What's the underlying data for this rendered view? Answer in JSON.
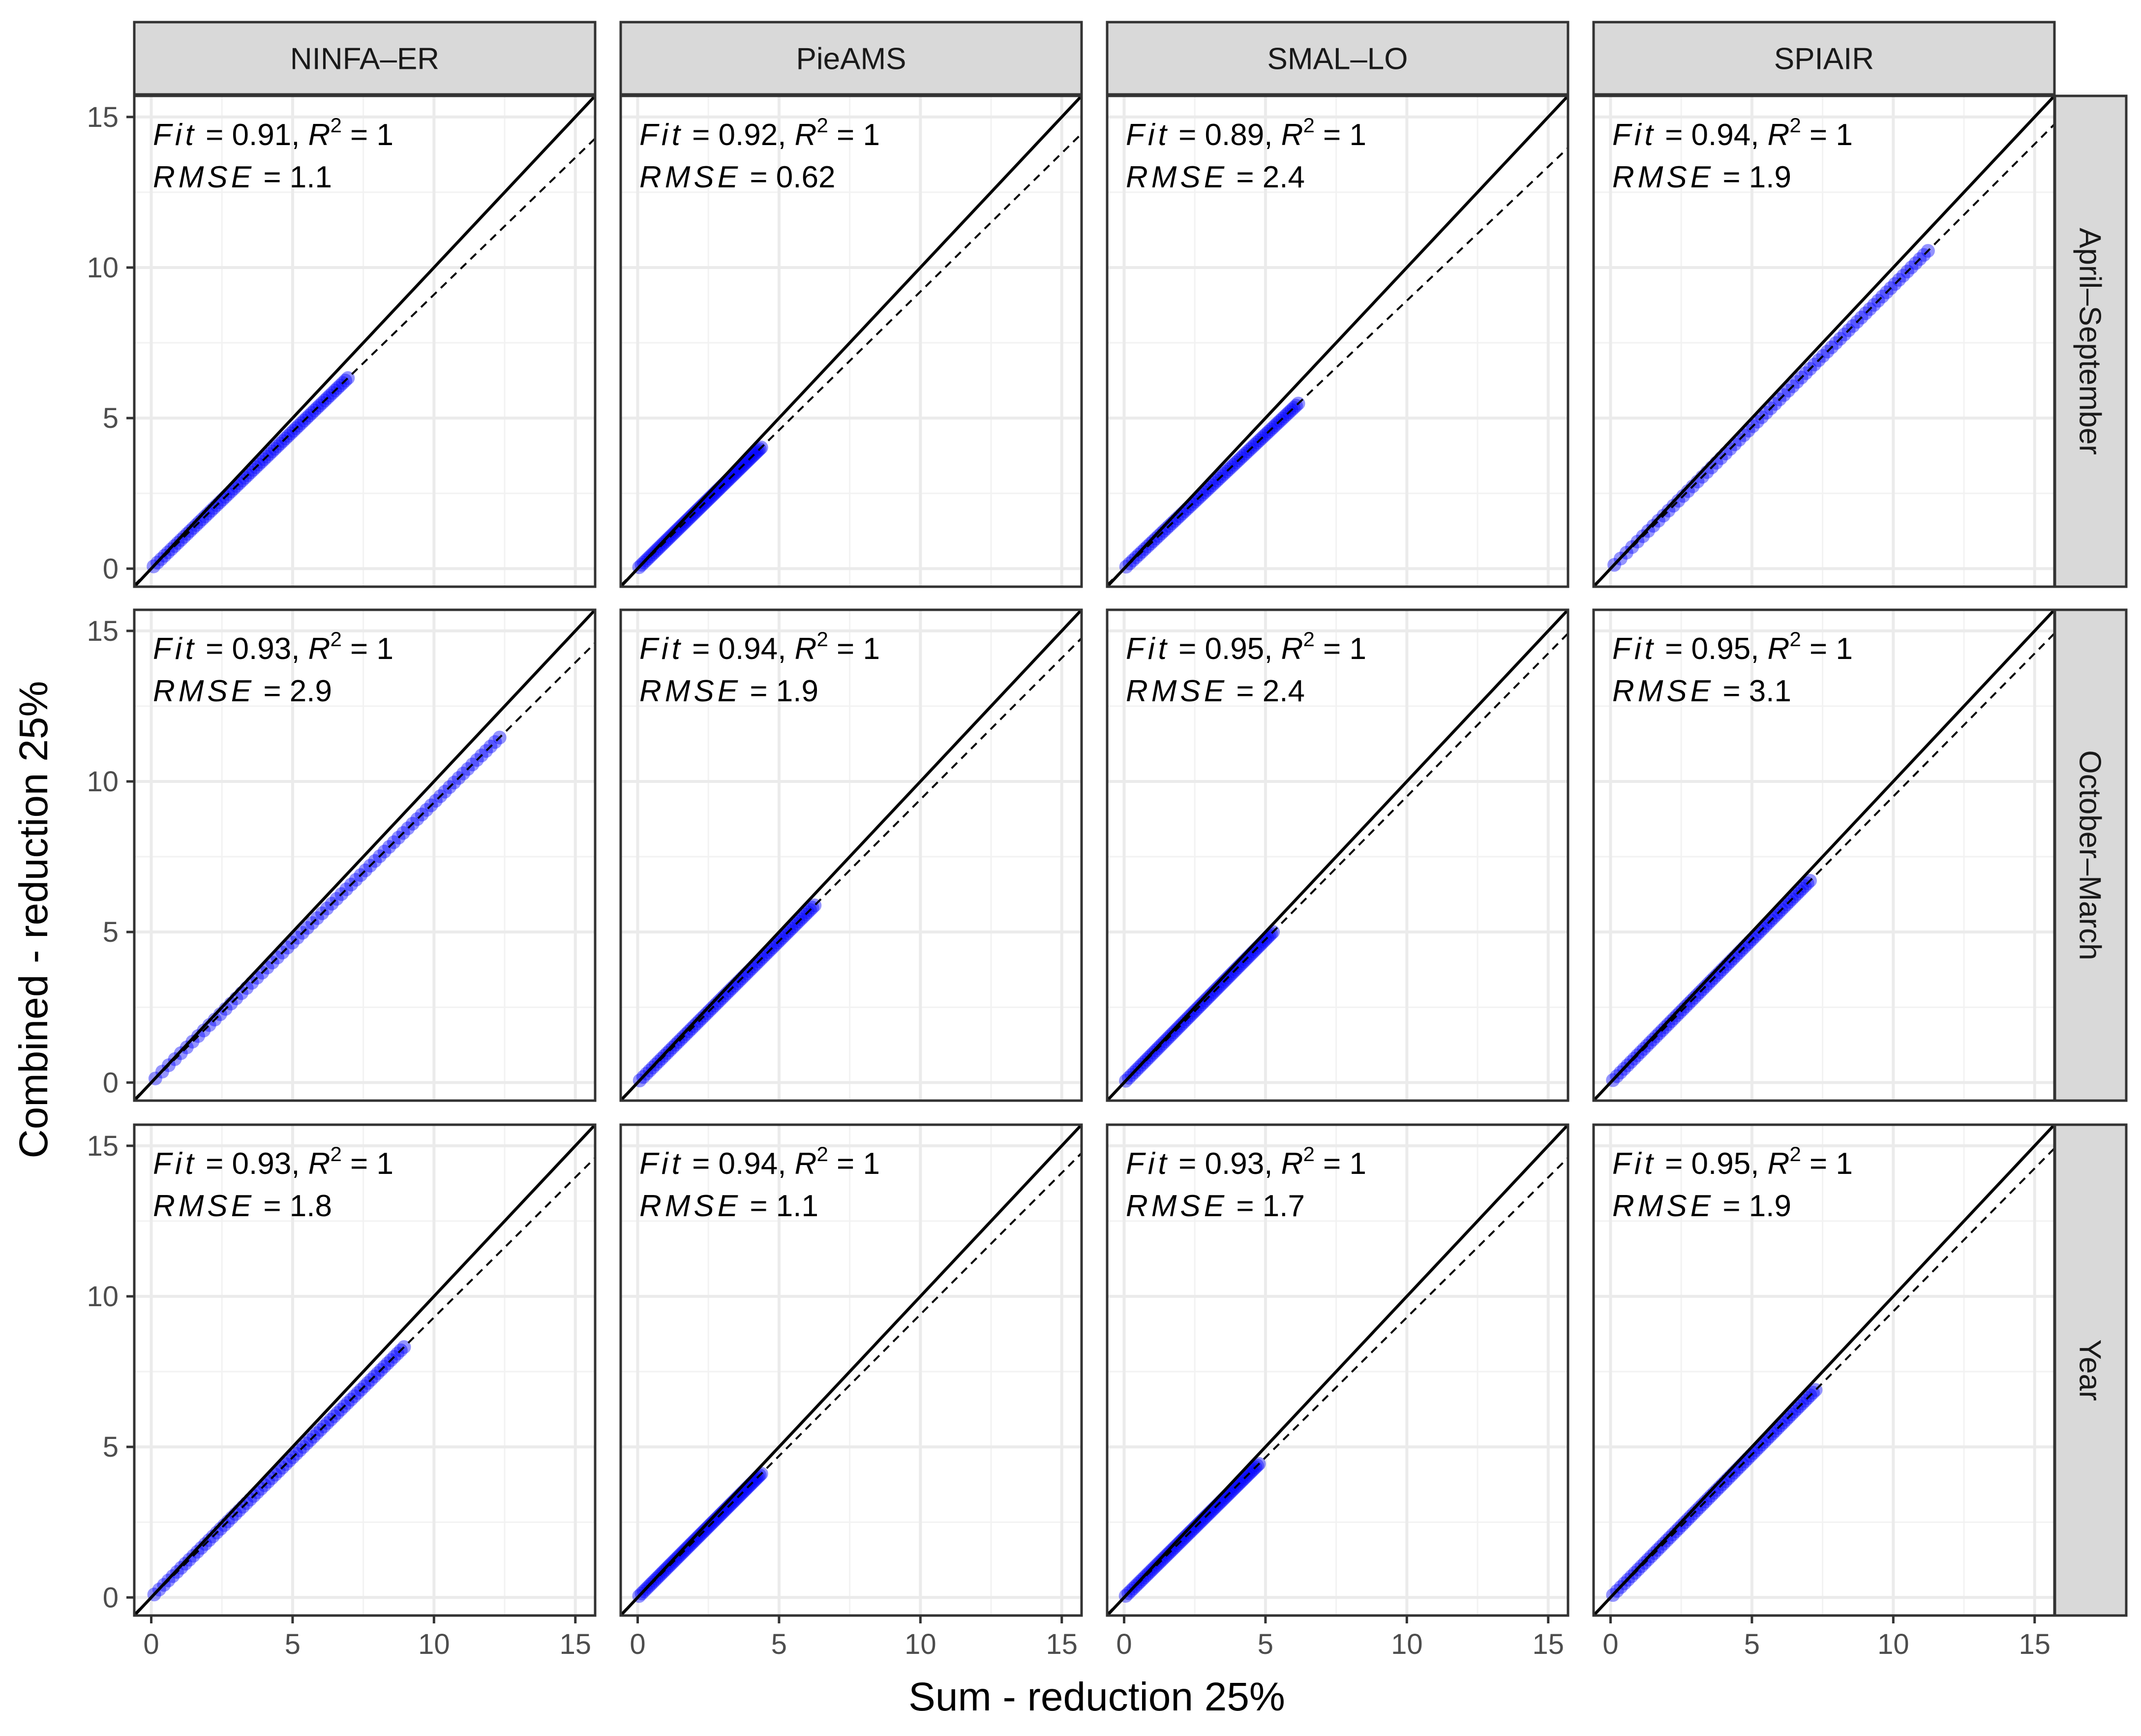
{
  "chart_data": {
    "type": "scatter",
    "xlabel": "Sum - reduction 25%",
    "ylabel": "Combined - reduction 25%",
    "xlim": [
      -0.6,
      15.7
    ],
    "ylim": [
      -0.6,
      15.7
    ],
    "x_ticks": [
      0,
      5,
      10,
      15
    ],
    "y_ticks": [
      0,
      5,
      10,
      15
    ],
    "x_tick_labels": [
      "0",
      "5",
      "10",
      "15"
    ],
    "y_tick_labels": [
      "0",
      "5",
      "10",
      "15"
    ],
    "grid": true,
    "point_color": "#0000ff",
    "identity_line": {
      "style": "solid",
      "color": "#000000",
      "slope": 1,
      "intercept": 0
    },
    "fit_line": {
      "style": "dashed",
      "color": "#000000"
    },
    "annotation_labels": {
      "fit": "Fit",
      "r": "R",
      "rmse": "RMSE",
      "eq": "="
    },
    "columns": [
      "NINFA–ER",
      "PieAMS",
      "SMAL–LO",
      "SPIAIR"
    ],
    "rows": [
      "April–September",
      "October–March",
      "Year"
    ],
    "panels": [
      {
        "row": "April–September",
        "column": "NINFA–ER",
        "fit": "0.91",
        "r2": "1",
        "rmse": "1.1",
        "slope": 0.91,
        "x_max": 7.0
      },
      {
        "row": "April–September",
        "column": "PieAMS",
        "fit": "0.92",
        "r2": "1",
        "rmse": "0.62",
        "slope": 0.92,
        "x_max": 4.4
      },
      {
        "row": "April–September",
        "column": "SMAL–LO",
        "fit": "0.89",
        "r2": "1",
        "rmse": "2.4",
        "slope": 0.89,
        "x_max": 6.2
      },
      {
        "row": "April–September",
        "column": "SPIAIR",
        "fit": "0.94",
        "r2": "1",
        "rmse": "1.9",
        "slope": 0.94,
        "x_max": 11.3
      },
      {
        "row": "October–March",
        "column": "NINFA–ER",
        "fit": "0.93",
        "r2": "1",
        "rmse": "2.9",
        "slope": 0.93,
        "x_max": 12.4
      },
      {
        "row": "October–March",
        "column": "PieAMS",
        "fit": "0.94",
        "r2": "1",
        "rmse": "1.9",
        "slope": 0.94,
        "x_max": 6.3
      },
      {
        "row": "October–March",
        "column": "SMAL–LO",
        "fit": "0.95",
        "r2": "1",
        "rmse": "2.4",
        "slope": 0.95,
        "x_max": 5.3
      },
      {
        "row": "October–March",
        "column": "SPIAIR",
        "fit": "0.95",
        "r2": "1",
        "rmse": "3.1",
        "slope": 0.95,
        "x_max": 7.1
      },
      {
        "row": "Year",
        "column": "NINFA–ER",
        "fit": "0.93",
        "r2": "1",
        "rmse": "1.8",
        "slope": 0.93,
        "x_max": 9.0
      },
      {
        "row": "Year",
        "column": "PieAMS",
        "fit": "0.94",
        "r2": "1",
        "rmse": "1.1",
        "slope": 0.94,
        "x_max": 4.4
      },
      {
        "row": "Year",
        "column": "SMAL–LO",
        "fit": "0.93",
        "r2": "1",
        "rmse": "1.7",
        "slope": 0.93,
        "x_max": 4.8
      },
      {
        "row": "Year",
        "column": "SPIAIR",
        "fit": "0.95",
        "r2": "1",
        "rmse": "1.9",
        "slope": 0.95,
        "x_max": 7.3
      }
    ]
  }
}
